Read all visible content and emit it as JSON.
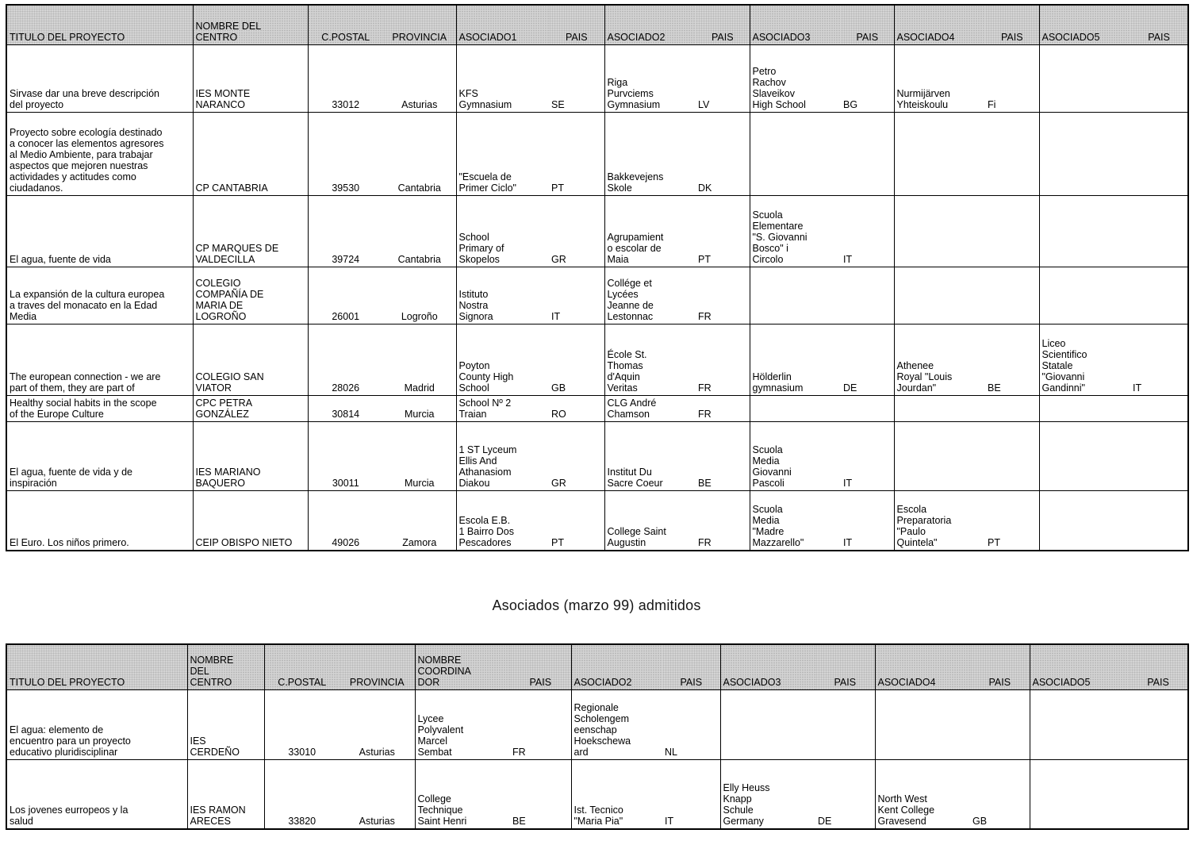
{
  "section_title": "Asociados (marzo 99) admitidos",
  "table1": {
    "headers": [
      "TITULO DEL PROYECTO",
      "NOMBRE DEL\nCENTRO",
      "C.POSTAL",
      "PROVINCIA",
      "ASOCIADO1",
      "PAIS",
      "ASOCIADO2",
      "PAIS",
      "ASOCIADO3",
      "PAIS",
      "ASOCIADO4",
      "PAIS",
      "ASOCIADO5",
      "PAIS"
    ],
    "rows": [
      [
        "Sirvase dar una breve descripción\ndel proyecto",
        "IES MONTE\nNARANCO",
        "33012",
        "Asturias",
        "KFS\nGymnasium",
        "SE",
        "Riga\nPurvciems\nGymnasium",
        "LV",
        "Petro\nRachov\nSlaveikov\nHigh School",
        "BG",
        "Nurmijärven\nYhteiskoulu",
        "Fi",
        "",
        ""
      ],
      [
        "Proyecto sobre ecología destinado\na conocer las elementos agresores\nal Medio Ambiente, para trabajar\naspectos que mejoren nuestras\nactividades y actitudes como\nciudadanos.",
        "CP CANTABRIA",
        "39530",
        "Cantabria",
        "\"Escuela de\nPrimer Ciclo\"",
        "PT",
        "Bakkevejens\nSkole",
        "DK",
        "",
        "",
        "",
        "",
        "",
        ""
      ],
      [
        "El agua, fuente de vida",
        "CP MARQUES DE\nVALDECILLA",
        "39724",
        "Cantabria",
        "School\nPrimary of\nSkopelos",
        "GR",
        "Agrupamient\no escolar de\nMaia",
        "PT",
        "Scuola\nElementare\n\"S. Giovanni\nBosco\" i\nCircolo",
        "IT",
        "",
        "",
        "",
        ""
      ],
      [
        "La expansión de la cultura europea\na traves del monacato en la Edad\nMedia",
        "COLEGIO\nCOMPAÑÍA DE\nMARIA DE\nLOGROÑO",
        "26001",
        "Logroño",
        "Istituto\nNostra\nSignora",
        "IT",
        "Collége et\nLycées\nJeanne de\nLestonnac",
        "FR",
        "",
        "",
        "",
        "",
        "",
        ""
      ],
      [
        "The european connection - we are\npart of them, they are part of",
        "COLEGIO SAN\nVIATOR",
        "28026",
        "Madrid",
        "Poyton\nCounty High\nSchool",
        "GB",
        "École St.\nThomas\nd'Aquin\nVeritas",
        "FR",
        "Hölderlin\ngymnasium",
        "DE",
        "Athenee\nRoyal \"Louis\nJourdan\"",
        "BE",
        "Liceo\nScientifico\nStatale\n\"Giovanni\nGandinni\"",
        "IT"
      ],
      [
        "Healthy social habits in the scope\nof the Europe Culture",
        "CPC PETRA\nGONZÁLEZ",
        "30814",
        "Murcia",
        "School Nº 2\nTraian",
        "RO",
        "CLG André\nChamson",
        "FR",
        "",
        "",
        "",
        "",
        "",
        ""
      ],
      [
        "El agua, fuente de vida y de\ninspiración",
        "IES MARIANO\nBAQUERO",
        "30011",
        "Murcia",
        "1 ST Lyceum\nEllis And\nAthanasiom\nDiakou",
        "GR",
        "Institut Du\nSacre Coeur",
        "BE",
        "Scuola\nMedia\nGiovanni\nPascoli",
        "IT",
        "",
        "",
        "",
        ""
      ],
      [
        "El Euro. Los niños primero.",
        "CEIP OBISPO NIETO",
        "49026",
        "Zamora",
        "Escola E.B.\n1 Bairro Dos\nPescadores",
        "PT",
        "College Saint\nAugustin",
        "FR",
        "Scuola\nMedia\n\"Madre\nMazzarello\"",
        "IT",
        "Escola\nPreparatoria\n\"Paulo\nQuintela\"",
        "PT",
        "",
        ""
      ]
    ]
  },
  "table2": {
    "headers": [
      "TITULO DEL PROYECTO",
      "NOMBRE\nDEL\nCENTRO",
      "C.POSTAL",
      "PROVINCIA",
      "NOMBRE\nCOORDINA\nDOR",
      "PAIS",
      "ASOCIADO2",
      "PAIS",
      "ASOCIADO3",
      "PAIS",
      "ASOCIADO4",
      "PAIS",
      "ASOCIADO5",
      "PAIS"
    ],
    "rows": [
      [
        "El agua: elemento de\nencuentro para un proyecto\neducativo pluridisciplinar",
        "IES\nCERDEÑO",
        "33010",
        "Asturias",
        "Lycee\nPolyvalent\nMarcel\nSembat",
        "FR",
        "Regionale\nScholengem\neenschap\nHoekschewa\nard",
        "NL",
        "",
        "",
        "",
        "",
        "",
        ""
      ],
      [
        "Los jovenes eurropeos y la\nsalud",
        "IES RAMON\nARECES",
        "33820",
        "Asturias",
        "College\nTechnique\nSaint Henri",
        "BE",
        "Ist. Tecnico\n\"Maria Pia\"",
        "IT",
        "Elly Heuss\nKnapp\nSchule\nGermany",
        "DE",
        "North West\nKent College\nGravesend",
        "GB",
        "",
        ""
      ]
    ]
  }
}
